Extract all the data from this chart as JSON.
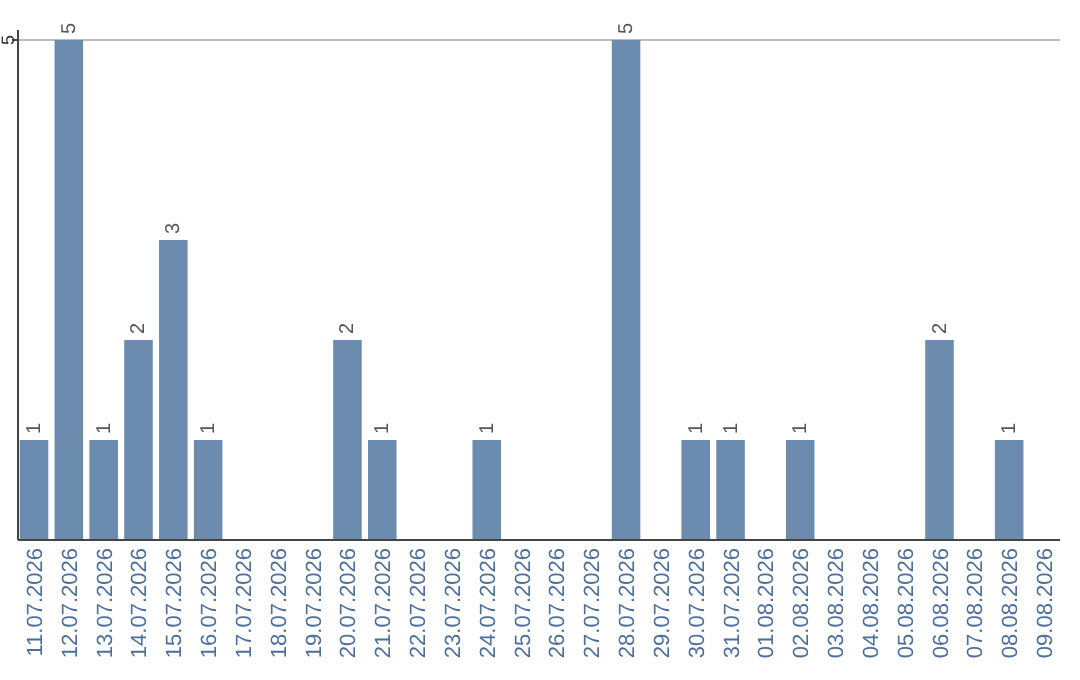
{
  "chart_data": {
    "type": "bar",
    "categories": [
      "11.07.2026",
      "12.07.2026",
      "13.07.2026",
      "14.07.2026",
      "15.07.2026",
      "16.07.2026",
      "17.07.2026",
      "18.07.2026",
      "19.07.2026",
      "20.07.2026",
      "21.07.2026",
      "22.07.2026",
      "23.07.2026",
      "24.07.2026",
      "25.07.2026",
      "26.07.2026",
      "27.07.2026",
      "28.07.2026",
      "29.07.2026",
      "30.07.2026",
      "31.07.2026",
      "01.08.2026",
      "02.08.2026",
      "03.08.2026",
      "04.08.2026",
      "05.08.2026",
      "06.08.2026",
      "07.08.2026",
      "08.08.2026",
      "09.08.2026"
    ],
    "values": [
      1,
      5,
      1,
      2,
      3,
      1,
      0,
      0,
      0,
      2,
      1,
      0,
      0,
      1,
      0,
      0,
      0,
      5,
      0,
      1,
      1,
      0,
      1,
      0,
      0,
      0,
      2,
      0,
      1,
      0
    ],
    "value_labels": [
      "1",
      "5",
      "1",
      "2",
      "3",
      "1",
      null,
      null,
      null,
      "2",
      "1",
      null,
      null,
      "1",
      null,
      null,
      null,
      "5",
      null,
      "1",
      "1",
      null,
      "1",
      null,
      null,
      null,
      "2",
      null,
      "1",
      null
    ],
    "color": "#6b8cae",
    "ylim": [
      0,
      5.1
    ],
    "yticks": [
      5
    ],
    "grid": "y"
  }
}
